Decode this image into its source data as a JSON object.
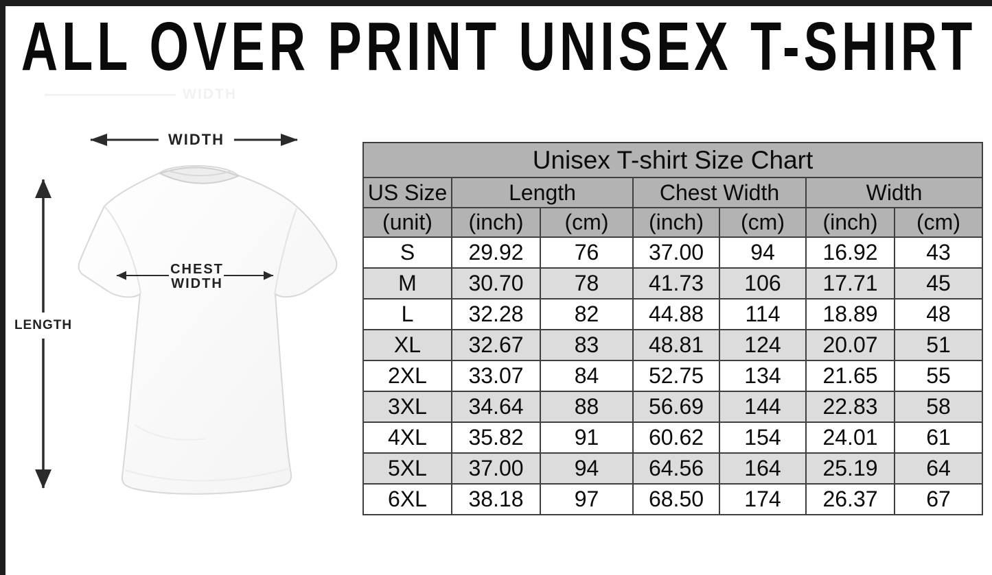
{
  "page": {
    "title": "ALL OVER PRINT UNISEX T-SHIRT"
  },
  "diagram": {
    "width_label": "WIDTH",
    "length_label": "LENGTH",
    "chest_label_line1": "CHEST",
    "chest_label_line2": "WIDTH",
    "ghost_label": "WIDTH"
  },
  "size_chart": {
    "title": "Unisex T-shirt Size Chart",
    "column_groups": [
      "US Size",
      "Length",
      "Chest Width",
      "Width"
    ],
    "unit_row": [
      "(unit)",
      "(inch)",
      "(cm)",
      "(inch)",
      "(cm)",
      "(inch)",
      "(cm)"
    ],
    "rows": [
      {
        "size": "S",
        "length_in": "29.92",
        "length_cm": "76",
        "chest_in": "37.00",
        "chest_cm": "94",
        "width_in": "16.92",
        "width_cm": "43"
      },
      {
        "size": "M",
        "length_in": "30.70",
        "length_cm": "78",
        "chest_in": "41.73",
        "chest_cm": "106",
        "width_in": "17.71",
        "width_cm": "45"
      },
      {
        "size": "L",
        "length_in": "32.28",
        "length_cm": "82",
        "chest_in": "44.88",
        "chest_cm": "114",
        "width_in": "18.89",
        "width_cm": "48"
      },
      {
        "size": "XL",
        "length_in": "32.67",
        "length_cm": "83",
        "chest_in": "48.81",
        "chest_cm": "124",
        "width_in": "20.07",
        "width_cm": "51"
      },
      {
        "size": "2XL",
        "length_in": "33.07",
        "length_cm": "84",
        "chest_in": "52.75",
        "chest_cm": "134",
        "width_in": "21.65",
        "width_cm": "55"
      },
      {
        "size": "3XL",
        "length_in": "34.64",
        "length_cm": "88",
        "chest_in": "56.69",
        "chest_cm": "144",
        "width_in": "22.83",
        "width_cm": "58"
      },
      {
        "size": "4XL",
        "length_in": "35.82",
        "length_cm": "91",
        "chest_in": "60.62",
        "chest_cm": "154",
        "width_in": "24.01",
        "width_cm": "61"
      },
      {
        "size": "5XL",
        "length_in": "37.00",
        "length_cm": "94",
        "chest_in": "64.56",
        "chest_cm": "164",
        "width_in": "25.19",
        "width_cm": "64"
      },
      {
        "size": "6XL",
        "length_in": "38.18",
        "length_cm": "97",
        "chest_in": "68.50",
        "chest_cm": "174",
        "width_in": "26.37",
        "width_cm": "67"
      }
    ],
    "colors": {
      "header_bg": "#b3b3b3",
      "row_alt_bg": "#dcdcdc",
      "table_border": "#3f3f3f",
      "frame": "#1d1d1d",
      "arrow": "#2b2b2b"
    }
  }
}
